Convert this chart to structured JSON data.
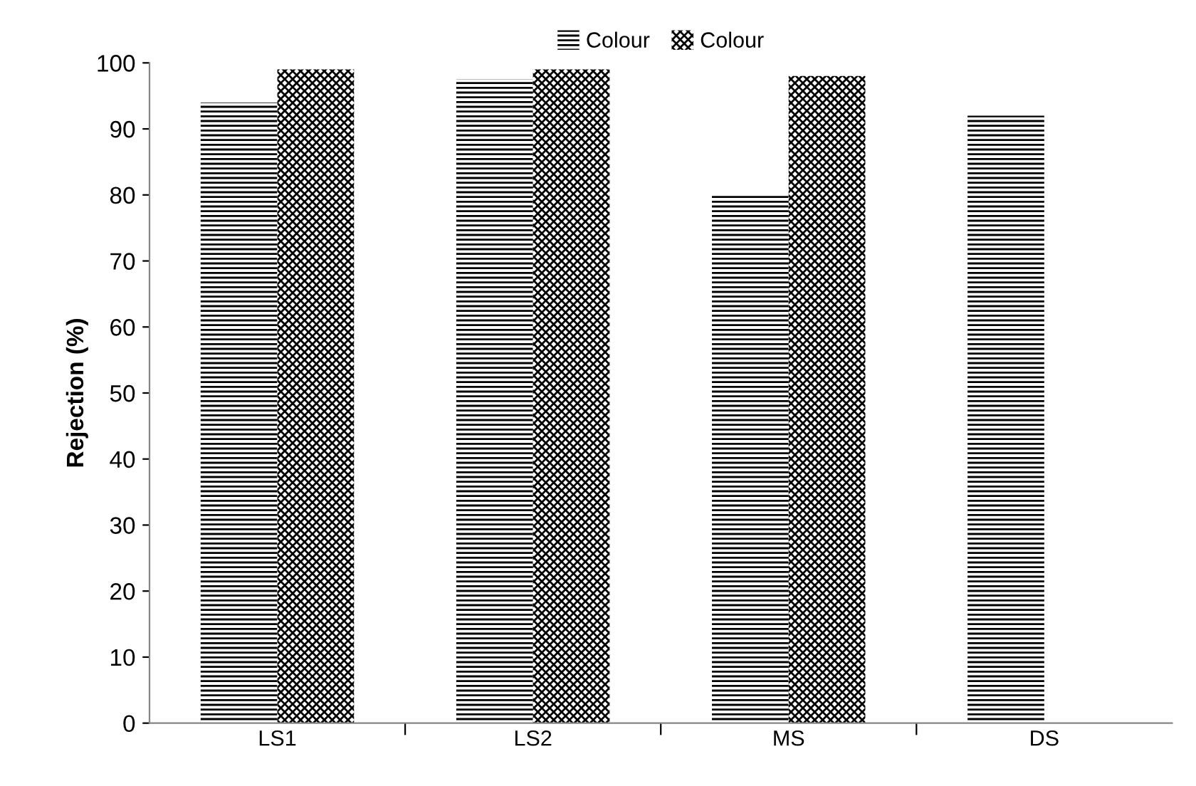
{
  "chart_data": {
    "type": "bar",
    "ylabel": "Rejection (%)",
    "categories": [
      "LS1",
      "LS2",
      "MS",
      "DS"
    ],
    "series": [
      {
        "name": "Colour",
        "color": "#000000",
        "values": [
          94,
          97.5,
          80,
          92
        ]
      },
      {
        "name": "Colour",
        "color": "#000000",
        "values": [
          99,
          99,
          98,
          null
        ]
      }
    ],
    "ylim": [
      0,
      100
    ],
    "yticks": [
      0,
      10,
      20,
      30,
      40,
      50,
      60,
      70,
      80,
      90,
      100
    ],
    "grid": false,
    "legend": "top"
  }
}
